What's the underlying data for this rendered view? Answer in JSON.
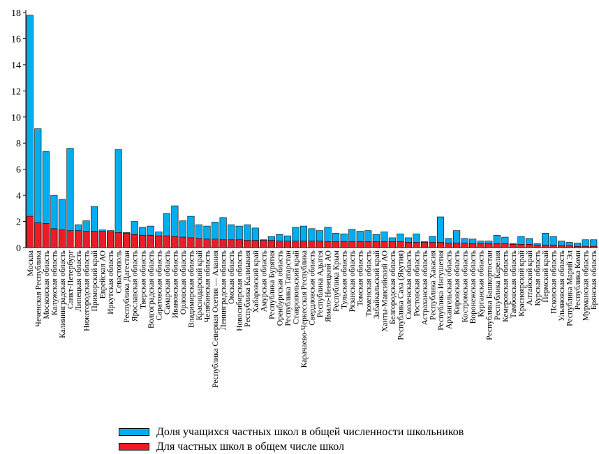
{
  "chart_data": {
    "type": "bar",
    "ylim": [
      0,
      18
    ],
    "yticks": [
      "0",
      "2",
      "4",
      "6",
      "8",
      "10",
      "12",
      "14",
      "16",
      "18"
    ],
    "grid": false,
    "legend_position": "bottom",
    "colors": {
      "students": "#00aeef",
      "schools": "#ed1c24"
    },
    "categories": [
      "Москва",
      "Чеченская Республика",
      "Московская область",
      "Калужская область",
      "Калининградская область",
      "Санкт-Петербург",
      "Липецкая область",
      "Нижегородская область",
      "Приморский край",
      "Еврейская АО",
      "Иркутская область",
      "Севастополь",
      "Республика Дагестан",
      "Ярославская область",
      "Тверская область",
      "Волгоградская область",
      "Саратовская область",
      "Самарская область",
      "Ивановская область",
      "Орловская область",
      "Владимирская область",
      "Краснодарский край",
      "Челябинская область",
      "Республика Северная Осетия — Алания",
      "Ленинградская область",
      "Омская область",
      "Новосибирская область",
      "Республика Калмыкия",
      "Хабаровский край",
      "Амурская область",
      "Республика Бурятия",
      "Оренбургская область",
      "Республика Татарстан",
      "Ставропольский край",
      "Карачаево-Черкесская Республика",
      "Свердловская область",
      "Республика Адыгея",
      "Ямало-Ненецкий АО",
      "Республика Крым",
      "Тульская область",
      "Рязанская область",
      "Томская область",
      "Тюменская область",
      "Забайкальский край",
      "Ханты-Мансийский АО",
      "Белгородская область",
      "Республика Саха (Якутия)",
      "Смоленская область",
      "Ростовская область",
      "Астраханская область",
      "Республика Хакасия",
      "Республика Ингушетия",
      "Архангельская область",
      "Кировская область",
      "Костромская область",
      "Воронежская область",
      "Курганская область",
      "Республика Башкортостан",
      "Республика Карелия",
      "Кемеровская область",
      "Тамбовская область",
      "Красноярский край",
      "Алтайский край",
      "Курская область",
      "Пермский край",
      "Псковская область",
      "Ульяновская область",
      "Республика Марий Эл",
      "Республика Коми",
      "Мурманская область",
      "Брянская область"
    ],
    "series": [
      {
        "name": "Доля учащихся частных школ в общей численности школьников",
        "values": [
          17.8,
          9.1,
          7.35,
          4.0,
          3.7,
          7.6,
          1.75,
          2.05,
          3.15,
          1.35,
          1.3,
          7.5,
          1.15,
          2.0,
          1.55,
          1.65,
          1.2,
          2.6,
          3.2,
          2.05,
          2.4,
          1.75,
          1.65,
          1.95,
          2.3,
          1.75,
          1.65,
          1.75,
          1.5,
          0.6,
          0.85,
          1.0,
          0.9,
          1.55,
          1.65,
          1.45,
          1.3,
          1.55,
          1.1,
          1.05,
          1.4,
          1.25,
          1.3,
          1.0,
          1.2,
          0.75,
          1.05,
          0.75,
          1.05,
          0.45,
          0.85,
          2.35,
          0.7,
          1.3,
          0.7,
          0.65,
          0.5,
          0.5,
          0.95,
          0.8,
          0.3,
          0.85,
          0.7,
          0.3,
          1.1,
          0.85,
          0.5,
          0.4,
          0.35,
          0.6,
          0.6
        ]
      },
      {
        "name": "Для частных школ в общем числе школ",
        "values": [
          2.4,
          1.9,
          1.85,
          1.45,
          1.35,
          1.3,
          1.3,
          1.25,
          1.25,
          1.25,
          1.2,
          1.15,
          1.1,
          1.0,
          0.95,
          0.95,
          0.9,
          0.9,
          0.85,
          0.8,
          0.75,
          0.7,
          0.65,
          0.65,
          0.6,
          0.6,
          0.6,
          0.55,
          0.55,
          0.55,
          0.55,
          0.5,
          0.5,
          0.5,
          0.5,
          0.5,
          0.5,
          0.45,
          0.45,
          0.45,
          0.45,
          0.45,
          0.45,
          0.45,
          0.45,
          0.45,
          0.45,
          0.4,
          0.4,
          0.4,
          0.4,
          0.4,
          0.35,
          0.35,
          0.35,
          0.3,
          0.3,
          0.3,
          0.3,
          0.3,
          0.25,
          0.25,
          0.25,
          0.2,
          0.2,
          0.2,
          0.15,
          0.15,
          0.1,
          0.1,
          0.1
        ]
      }
    ]
  }
}
